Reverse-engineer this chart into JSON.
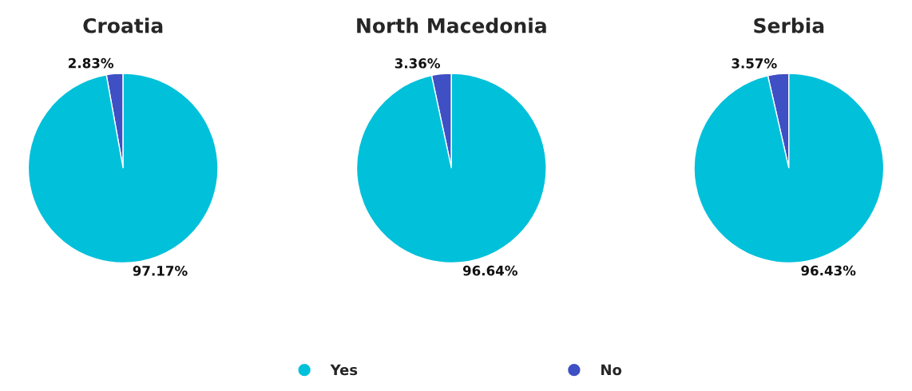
{
  "chart_data": [
    {
      "type": "pie",
      "title": "Croatia",
      "categories": [
        "Yes",
        "No"
      ],
      "values": [
        97.17,
        2.83
      ],
      "colors": [
        "#00c0da",
        "#3f4fc4"
      ],
      "value_labels": [
        "97.17%",
        "2.83%"
      ],
      "legend": "bottom"
    },
    {
      "type": "pie",
      "title": "North Macedonia",
      "categories": [
        null,
        null
      ],
      "values": [
        96.64,
        3.36
      ],
      "colors": [
        "#00c0da",
        "#3f4fc4"
      ],
      "value_labels": [
        "96.64%",
        "3.36%"
      ]
    },
    {
      "type": "pie",
      "title": "Serbia",
      "categories": [
        null,
        null
      ],
      "values": [
        96.43,
        3.57
      ],
      "colors": [
        "#00c0da",
        "#3f4fc4"
      ],
      "value_labels": [
        "96.43%",
        "3.57%"
      ]
    }
  ]
}
